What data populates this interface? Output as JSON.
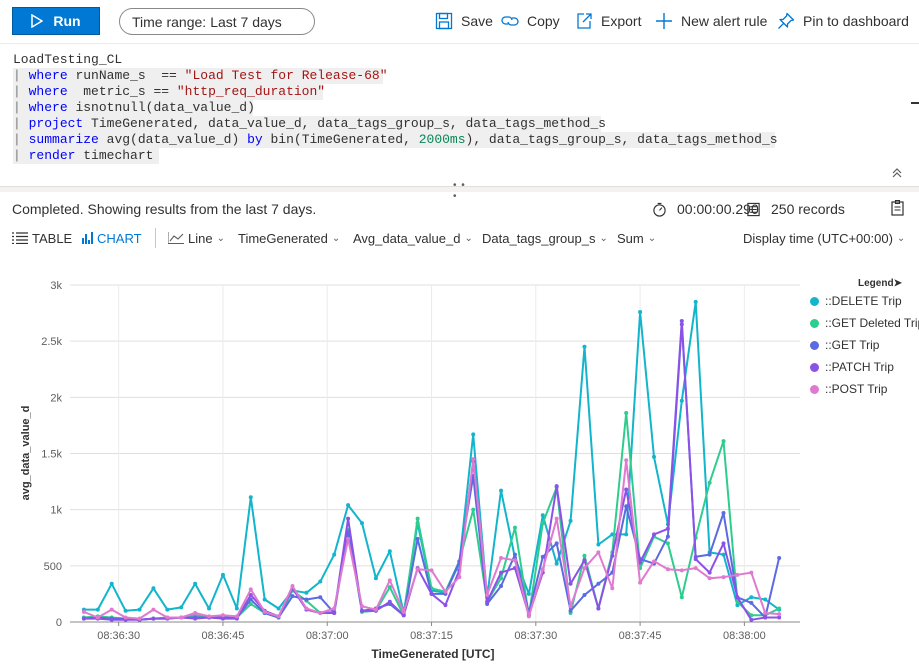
{
  "toolbar": {
    "run_label": "Run",
    "time_range_label": "Time range:",
    "time_range_value": "Last 7 days",
    "save_label": "Save",
    "copy_label": "Copy",
    "export_label": "Export",
    "new_alert_label": "New alert rule",
    "pin_label": "Pin to dashboard"
  },
  "query": {
    "line1": "LoadTesting_CL",
    "line2_kw": "where",
    "line2_rest": " runName_s  == ",
    "line2_str": "\"Load Test for Release-68\"",
    "line3_kw": "where",
    "line3_rest": "  metric_s == ",
    "line3_str": "\"http_req_duration\"",
    "line4_kw": "where",
    "line4_rest": " isnotnull(data_value_d)",
    "line5_kw": "project",
    "line5_rest": " TimeGenerated, data_value_d, data_tags_group_s, data_tags_method_s",
    "line6_kw": "summarize",
    "line6_a": " avg(data_value_d) ",
    "line6_by": "by",
    "line6_b": " bin(TimeGenerated, ",
    "line6_num": "2000ms",
    "line6_c": "), data_tags_group_s, data_tags_method_s",
    "line7_kw": "render",
    "line7_rest": " timechart",
    "pipe": "|"
  },
  "status": {
    "message": "Completed. Showing results from the last 7 days.",
    "duration": "00:00:00.290",
    "records": "250 records"
  },
  "chart_options": {
    "table_tab": "TABLE",
    "chart_tab": "CHART",
    "chart_type": "Line",
    "x_column": "TimeGenerated",
    "y_column": "Avg_data_value_d",
    "split_column": "Data_tags_group_s",
    "aggregation": "Sum",
    "display_time": "Display time (UTC+00:00)"
  },
  "legend": {
    "title": "Legend",
    "items": [
      {
        "label": "::DELETE Trip",
        "color": "#12b5cb"
      },
      {
        "label": "::GET Deleted Trip",
        "color": "#2ecc8f"
      },
      {
        "label": "::GET Trip",
        "color": "#5b6be0"
      },
      {
        "label": "::PATCH Trip",
        "color": "#8b52e8"
      },
      {
        "label": "::POST Trip",
        "color": "#e07ad0"
      }
    ]
  },
  "chart_data": {
    "type": "line",
    "xlabel": "TimeGenerated [UTC]",
    "ylabel": "avg_data_value_d",
    "x_tick_labels": [
      "08:36:30",
      "08:36:45",
      "08:37:00",
      "08:37:15",
      "08:37:30",
      "08:37:45",
      "08:38:00"
    ],
    "x_tick_seconds": [
      30,
      45,
      60,
      75,
      90,
      105,
      120
    ],
    "xlim_seconds": [
      23,
      128
    ],
    "ylim": [
      0,
      3000
    ],
    "y_ticks": [
      0,
      500,
      1000,
      1500,
      2000,
      2500,
      3000
    ],
    "y_tick_labels": [
      "0",
      "500",
      "1k",
      "1.5k",
      "2k",
      "2.5k",
      "3k"
    ],
    "grid": true,
    "legend_position": "right",
    "series": [
      {
        "name": "::DELETE Trip",
        "color": "#12b5cb",
        "x": [
          25,
          27,
          29,
          31,
          33,
          35,
          37,
          39,
          41,
          43,
          45,
          47,
          49,
          51,
          53,
          55,
          57,
          59,
          61,
          63,
          65,
          67,
          69,
          71,
          73,
          75,
          77,
          79,
          81,
          83,
          85,
          87,
          89,
          91,
          93,
          95,
          97,
          99,
          101,
          103,
          105,
          107,
          109,
          111,
          113,
          115,
          117,
          119,
          121,
          123,
          125
        ],
        "y": [
          110,
          110,
          340,
          100,
          110,
          300,
          110,
          130,
          340,
          120,
          420,
          120,
          1110,
          200,
          120,
          280,
          260,
          360,
          600,
          1040,
          880,
          390,
          630,
          80,
          880,
          280,
          260,
          520,
          1670,
          220,
          1170,
          570,
          250,
          950,
          520,
          900,
          2450,
          690,
          780,
          780,
          2760,
          1470,
          870,
          1970,
          2850,
          620,
          600,
          150,
          220,
          200,
          110
        ]
      },
      {
        "name": "::GET Deleted Trip",
        "color": "#2ecc8f",
        "x": [
          25,
          27,
          29,
          31,
          33,
          35,
          37,
          39,
          41,
          43,
          45,
          47,
          49,
          51,
          53,
          55,
          57,
          59,
          61,
          63,
          65,
          67,
          69,
          71,
          73,
          75,
          77,
          79,
          81,
          83,
          85,
          87,
          89,
          91,
          93,
          95,
          97,
          99,
          101,
          103,
          105,
          107,
          109,
          111,
          113,
          115,
          117,
          119,
          121,
          123,
          125
        ],
        "y": [
          40,
          50,
          40,
          30,
          20,
          30,
          40,
          40,
          60,
          40,
          50,
          40,
          160,
          80,
          40,
          280,
          190,
          80,
          90,
          820,
          90,
          100,
          310,
          60,
          920,
          300,
          270,
          540,
          1000,
          180,
          390,
          840,
          60,
          880,
          1200,
          80,
          590,
          120,
          620,
          1860,
          480,
          760,
          700,
          220,
          750,
          1240,
          1610,
          180,
          60,
          60,
          120
        ]
      },
      {
        "name": "::GET Trip",
        "color": "#5b6be0",
        "x": [
          25,
          27,
          29,
          31,
          33,
          35,
          37,
          39,
          41,
          43,
          45,
          47,
          49,
          51,
          53,
          55,
          57,
          59,
          61,
          63,
          65,
          67,
          69,
          71,
          73,
          75,
          77,
          79,
          81,
          83,
          85,
          87,
          89,
          91,
          93,
          95,
          97,
          99,
          101,
          103,
          105,
          107,
          109,
          111,
          113,
          115,
          117,
          119,
          121,
          123,
          125
        ],
        "y": [
          30,
          40,
          30,
          30,
          20,
          30,
          30,
          40,
          40,
          40,
          40,
          40,
          200,
          80,
          40,
          230,
          200,
          220,
          80,
          800,
          100,
          120,
          160,
          60,
          740,
          250,
          250,
          540,
          1300,
          160,
          320,
          600,
          80,
          580,
          700,
          100,
          240,
          340,
          440,
          1030,
          560,
          520,
          760,
          2650,
          580,
          600,
          970,
          220,
          170,
          40,
          570
        ]
      },
      {
        "name": "::PATCH Trip",
        "color": "#8b52e8",
        "x": [
          25,
          27,
          29,
          31,
          33,
          35,
          37,
          39,
          41,
          43,
          45,
          47,
          49,
          51,
          53,
          55,
          57,
          59,
          61,
          63,
          65,
          67,
          69,
          71,
          73,
          75,
          77,
          79,
          81,
          83,
          85,
          87,
          89,
          91,
          93,
          95,
          97,
          99,
          101,
          103,
          105,
          107,
          109,
          111,
          113,
          115,
          117,
          119,
          121,
          123,
          125
        ],
        "y": [
          30,
          30,
          20,
          20,
          20,
          30,
          30,
          40,
          30,
          40,
          30,
          30,
          240,
          100,
          50,
          300,
          110,
          80,
          80,
          920,
          100,
          100,
          180,
          60,
          480,
          250,
          150,
          460,
          1430,
          180,
          440,
          480,
          60,
          440,
          1210,
          340,
          550,
          120,
          590,
          1180,
          530,
          780,
          830,
          2680,
          560,
          440,
          700,
          220,
          20,
          40,
          40
        ]
      },
      {
        "name": "::POST Trip",
        "color": "#e07ad0",
        "x": [
          25,
          27,
          29,
          31,
          33,
          35,
          37,
          39,
          41,
          43,
          45,
          47,
          49,
          51,
          53,
          55,
          57,
          59,
          61,
          63,
          65,
          67,
          69,
          71,
          73,
          75,
          77,
          79,
          81,
          83,
          85,
          87,
          89,
          91,
          93,
          95,
          97,
          99,
          101,
          103,
          105,
          107,
          109,
          111,
          113,
          115,
          117,
          119,
          121,
          123,
          125
        ],
        "y": [
          90,
          40,
          110,
          40,
          30,
          110,
          40,
          40,
          80,
          50,
          60,
          50,
          290,
          90,
          50,
          320,
          120,
          80,
          120,
          740,
          140,
          110,
          370,
          90,
          470,
          460,
          270,
          400,
          1450,
          240,
          570,
          550,
          50,
          470,
          920,
          140,
          480,
          620,
          300,
          1440,
          350,
          540,
          470,
          460,
          480,
          390,
          400,
          420,
          440,
          80,
          70
        ]
      }
    ]
  }
}
